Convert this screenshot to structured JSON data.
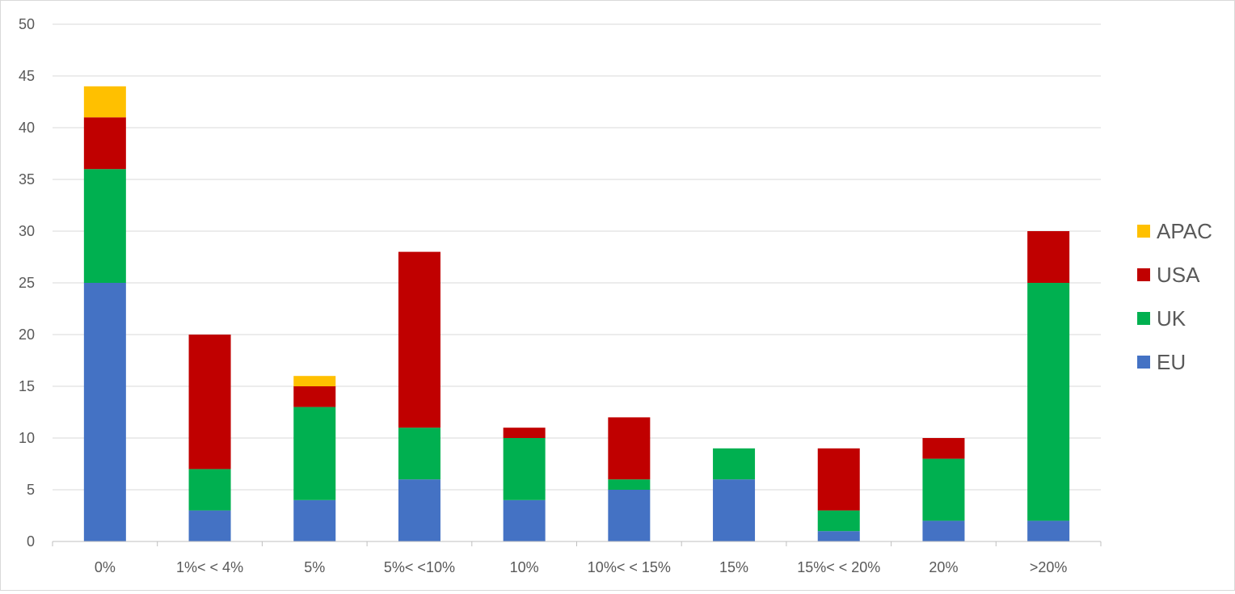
{
  "chart_data": {
    "type": "bar",
    "stacked": true,
    "title": "",
    "xlabel": "",
    "ylabel": "",
    "ylim": [
      0,
      50
    ],
    "yticks": [
      0,
      5,
      10,
      15,
      20,
      25,
      30,
      35,
      40,
      45,
      50
    ],
    "grid": true,
    "legend_position": "right",
    "categories": [
      "0%",
      "1%< < 4%",
      "5%",
      "5%< <10%",
      "10%",
      "10%< < 15%",
      "15%",
      "15%< < 20%",
      "20%",
      ">20%"
    ],
    "series": [
      {
        "name": "EU",
        "color": "#4472C4",
        "values": [
          25,
          3,
          4,
          6,
          4,
          5,
          6,
          1,
          2,
          2
        ]
      },
      {
        "name": "UK",
        "color": "#00B050",
        "values": [
          11,
          4,
          9,
          5,
          6,
          1,
          3,
          2,
          6,
          23
        ]
      },
      {
        "name": "USA",
        "color": "#C00000",
        "values": [
          5,
          13,
          2,
          17,
          1,
          6,
          0,
          6,
          2,
          5
        ]
      },
      {
        "name": "APAC",
        "color": "#FFC000",
        "values": [
          3,
          0,
          1,
          0,
          0,
          0,
          0,
          0,
          0,
          0
        ]
      }
    ]
  }
}
